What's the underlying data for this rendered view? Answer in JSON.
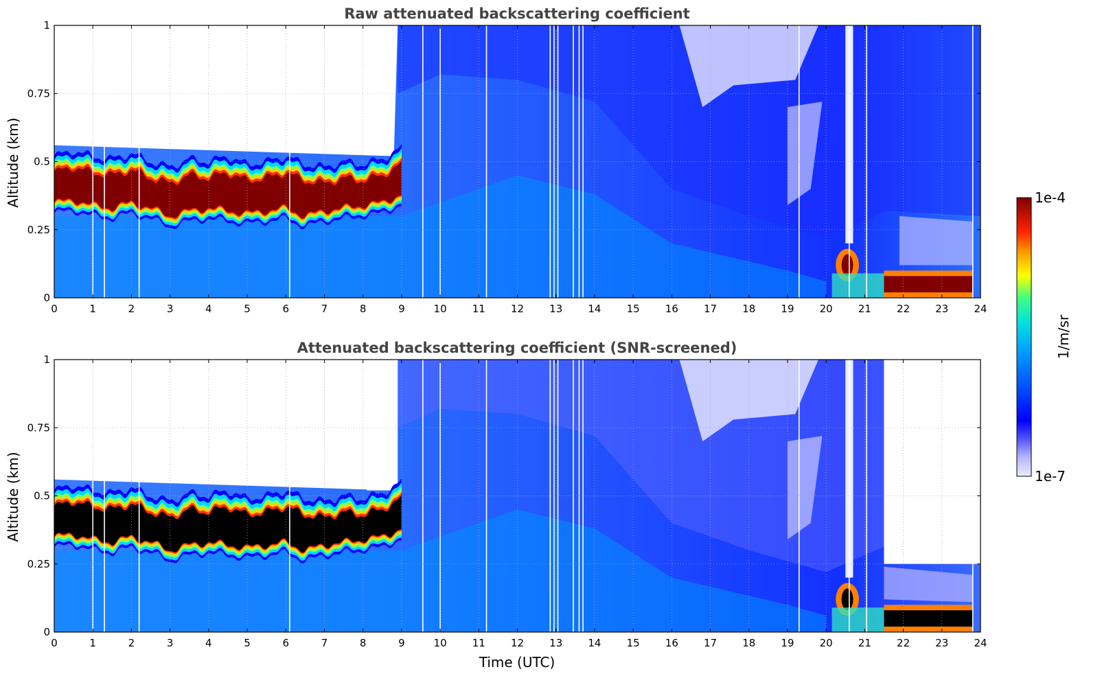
{
  "chart_data": [
    {
      "type": "heatmap",
      "title": "Raw attenuated backscattering coefficient",
      "xlabel": "",
      "ylabel": "Altitude (km)",
      "xlim": [
        0,
        24
      ],
      "ylim": [
        0,
        1
      ],
      "xticks": [
        "0",
        "1",
        "2",
        "3",
        "4",
        "5",
        "6",
        "7",
        "8",
        "9",
        "10",
        "11",
        "12",
        "13",
        "14",
        "15",
        "16",
        "17",
        "18",
        "19",
        "20",
        "21",
        "22",
        "23",
        "24"
      ],
      "yticks": [
        "0",
        "0.25",
        "0.5",
        "0.75",
        "1"
      ],
      "grid": true,
      "screened": false,
      "layer": {
        "time_h": [
          0,
          0.5,
          1,
          1.5,
          2,
          2.5,
          3,
          3.5,
          4,
          4.5,
          5,
          5.5,
          6,
          6.5,
          7,
          7.5,
          8,
          8.5,
          9
        ],
        "top_km": [
          0.46,
          0.48,
          0.46,
          0.45,
          0.47,
          0.44,
          0.42,
          0.45,
          0.44,
          0.46,
          0.43,
          0.44,
          0.46,
          0.43,
          0.42,
          0.44,
          0.43,
          0.45,
          0.49
        ],
        "bottom_km": [
          0.35,
          0.36,
          0.34,
          0.33,
          0.35,
          0.33,
          0.3,
          0.32,
          0.33,
          0.32,
          0.31,
          0.32,
          0.33,
          0.3,
          0.32,
          0.33,
          0.34,
          0.35,
          0.38
        ]
      },
      "low_layer": {
        "time_h": [
          21.5,
          23.8
        ],
        "top_km": 0.08,
        "bottom_km": 0.02
      },
      "gap_times_h": [
        1.0,
        1.3,
        2.2,
        6.1,
        9.55,
        10.0,
        11.2,
        12.85,
        12.95,
        13.05,
        13.45,
        13.6,
        13.7,
        19.3,
        20.6,
        21.05,
        23.8
      ]
    },
    {
      "type": "heatmap",
      "title": "Attenuated backscattering coefficient (SNR-screened)",
      "xlabel": "Time (UTC)",
      "ylabel": "Altitude (km)",
      "xlim": [
        0,
        24
      ],
      "ylim": [
        0,
        1
      ],
      "xticks": [
        "0",
        "1",
        "2",
        "3",
        "4",
        "5",
        "6",
        "7",
        "8",
        "9",
        "10",
        "11",
        "12",
        "13",
        "14",
        "15",
        "16",
        "17",
        "18",
        "19",
        "20",
        "21",
        "22",
        "23",
        "24"
      ],
      "yticks": [
        "0",
        "0.25",
        "0.5",
        "0.75",
        "1"
      ],
      "grid": true,
      "screened": true,
      "layer": {
        "time_h": [
          0,
          0.5,
          1,
          1.5,
          2,
          2.5,
          3,
          3.5,
          4,
          4.5,
          5,
          5.5,
          6,
          6.5,
          7,
          7.5,
          8,
          8.5,
          9
        ],
        "top_km": [
          0.46,
          0.48,
          0.46,
          0.45,
          0.47,
          0.44,
          0.42,
          0.45,
          0.44,
          0.46,
          0.43,
          0.44,
          0.46,
          0.43,
          0.42,
          0.44,
          0.43,
          0.45,
          0.49
        ],
        "bottom_km": [
          0.35,
          0.36,
          0.34,
          0.33,
          0.35,
          0.33,
          0.3,
          0.32,
          0.33,
          0.32,
          0.31,
          0.32,
          0.33,
          0.3,
          0.32,
          0.33,
          0.34,
          0.35,
          0.38
        ]
      },
      "low_layer": {
        "time_h": [
          21.5,
          23.8
        ],
        "top_km": 0.08,
        "bottom_km": 0.02
      },
      "gap_times_h": [
        1.0,
        1.3,
        2.2,
        6.1,
        9.55,
        10.0,
        11.2,
        12.85,
        12.95,
        13.05,
        13.45,
        13.6,
        13.7,
        19.3,
        20.6,
        21.05,
        23.8
      ]
    }
  ],
  "colorbar": {
    "label": "1/m/sr",
    "max_label": "1e-4",
    "min_label": "1e-7",
    "scale": "log",
    "colormap": [
      "#ecebff",
      "#b4b4ff",
      "#1a1aff",
      "#0050ff",
      "#00a0ff",
      "#00e0e0",
      "#40ff80",
      "#ffff00",
      "#ffa000",
      "#ff2000",
      "#c00000",
      "#800000"
    ]
  }
}
